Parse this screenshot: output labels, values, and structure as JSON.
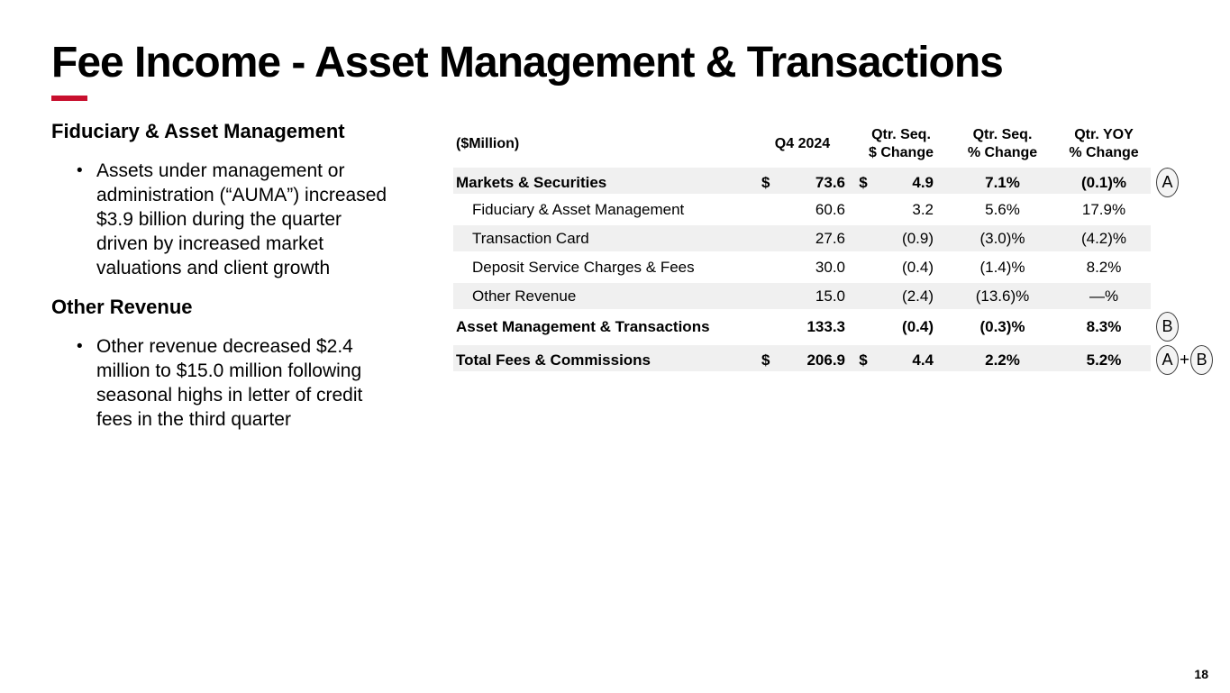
{
  "slide": {
    "title": "Fee Income - Asset Management & Transactions",
    "page_number": "18",
    "accent_color": "#C8102E",
    "stripe_color": "#F0F0F0"
  },
  "left_panel": {
    "bullet_glyph": "•",
    "sections": [
      {
        "heading": "Fiduciary & Asset Management",
        "bullets": [
          "Assets under management or administration (“AUMA”) increased $3.9 billion during the quarter driven by increased market valuations and client growth"
        ]
      },
      {
        "heading": "Other Revenue",
        "bullets": [
          "Other revenue decreased $2.4 million to $15.0 million following seasonal highs in letter of credit fees in the third quarter"
        ]
      }
    ]
  },
  "table": {
    "unit_label": "($Million)",
    "columns": [
      {
        "line1": "Q4 2024",
        "line2": ""
      },
      {
        "line1": "Qtr. Seq.",
        "line2": "$ Change"
      },
      {
        "line1": "Qtr. Seq.",
        "line2": "% Change"
      },
      {
        "line1": "Qtr. YOY",
        "line2": "% Change"
      }
    ],
    "rows": [
      {
        "label": "Markets & Securities",
        "d1": "$",
        "q4": "73.6",
        "d2": "$",
        "chg": "4.9",
        "seq": "7.1%",
        "yoy": "(0.1)%",
        "badge": "A"
      },
      {
        "label": "Fiduciary & Asset Management",
        "d1": "",
        "q4": "60.6",
        "d2": "",
        "chg": "3.2",
        "seq": "5.6%",
        "yoy": "17.9%",
        "badge": ""
      },
      {
        "label": "Transaction Card",
        "d1": "",
        "q4": "27.6",
        "d2": "",
        "chg": "(0.9)",
        "seq": "(3.0)%",
        "yoy": "(4.2)%",
        "badge": ""
      },
      {
        "label": "Deposit Service Charges & Fees",
        "d1": "",
        "q4": "30.0",
        "d2": "",
        "chg": "(0.4)",
        "seq": "(1.4)%",
        "yoy": "8.2%",
        "badge": ""
      },
      {
        "label": "Other Revenue",
        "d1": "",
        "q4": "15.0",
        "d2": "",
        "chg": "(2.4)",
        "seq": "(13.6)%",
        "yoy": "—%",
        "badge": ""
      },
      {
        "label": "Asset Management & Transactions",
        "d1": "",
        "q4": "133.3",
        "d2": "",
        "chg": "(0.4)",
        "seq": "(0.3)%",
        "yoy": "8.3%",
        "badge": "B"
      },
      {
        "label": "Total Fees & Commissions",
        "d1": "$",
        "q4": "206.9",
        "d2": "$",
        "chg": "4.4",
        "seq": "2.2%",
        "yoy": "5.2%",
        "badge_a": "A",
        "badge_plus": "+",
        "badge_b": "B"
      }
    ]
  }
}
